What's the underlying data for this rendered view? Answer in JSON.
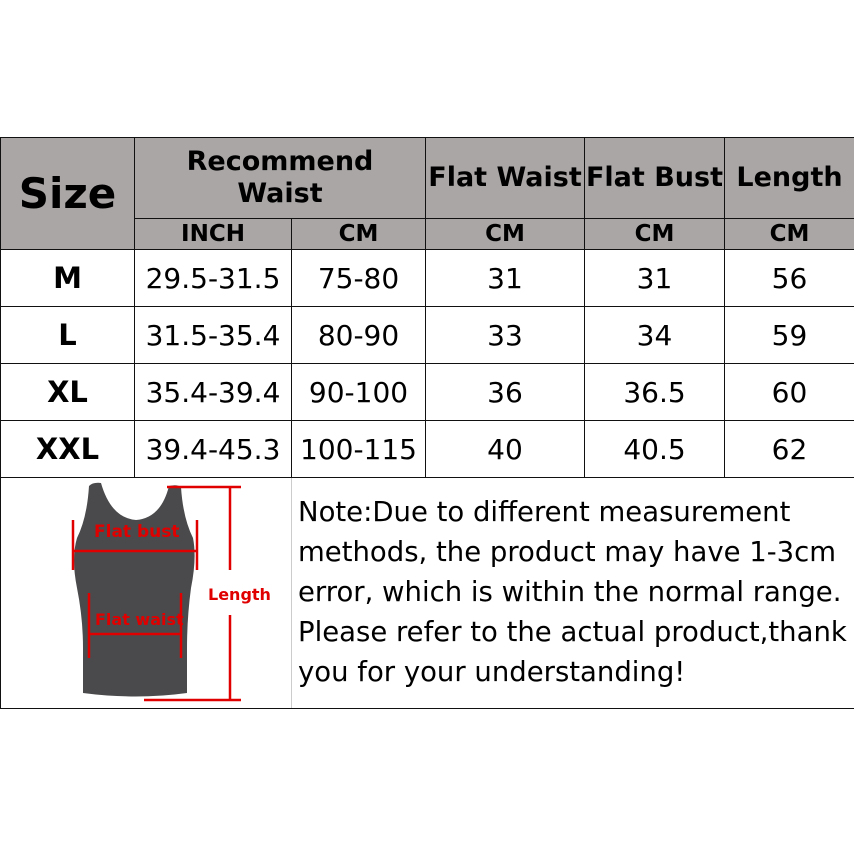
{
  "headers": {
    "size": "Size",
    "recommend_waist": "Recommend Waist",
    "flat_waist": "Flat Waist",
    "flat_bust": "Flat Bust",
    "length": "Length",
    "units": [
      "INCH",
      "CM",
      "CM",
      "CM",
      "CM"
    ]
  },
  "rows": [
    {
      "size": "M",
      "inch": "29.5-31.5",
      "cm": "75-80",
      "flat_waist": "31",
      "flat_bust": "31",
      "length": "56"
    },
    {
      "size": "L",
      "inch": "31.5-35.4",
      "cm": "80-90",
      "flat_waist": "33",
      "flat_bust": "34",
      "length": "59"
    },
    {
      "size": "XL",
      "inch": "35.4-39.4",
      "cm": "90-100",
      "flat_waist": "36",
      "flat_bust": "36.5",
      "length": "60"
    },
    {
      "size": "XXL",
      "inch": "39.4-45.3",
      "cm": "100-115",
      "flat_waist": "40",
      "flat_bust": "40.5",
      "length": "62"
    }
  ],
  "diagram": {
    "flat_bust_label": "Flat bust",
    "flat_waist_label": "Flat waist",
    "length_label": "Length",
    "accent_color": "#e00000",
    "garment_color": "#4a4a4c"
  },
  "note": "Note:Due to different measurement methods, the product may have 1-3cm error, which is within the normal range. Please refer to the actual product,thank you for your understanding!",
  "colors": {
    "header_bg": "#aaa6a6"
  }
}
